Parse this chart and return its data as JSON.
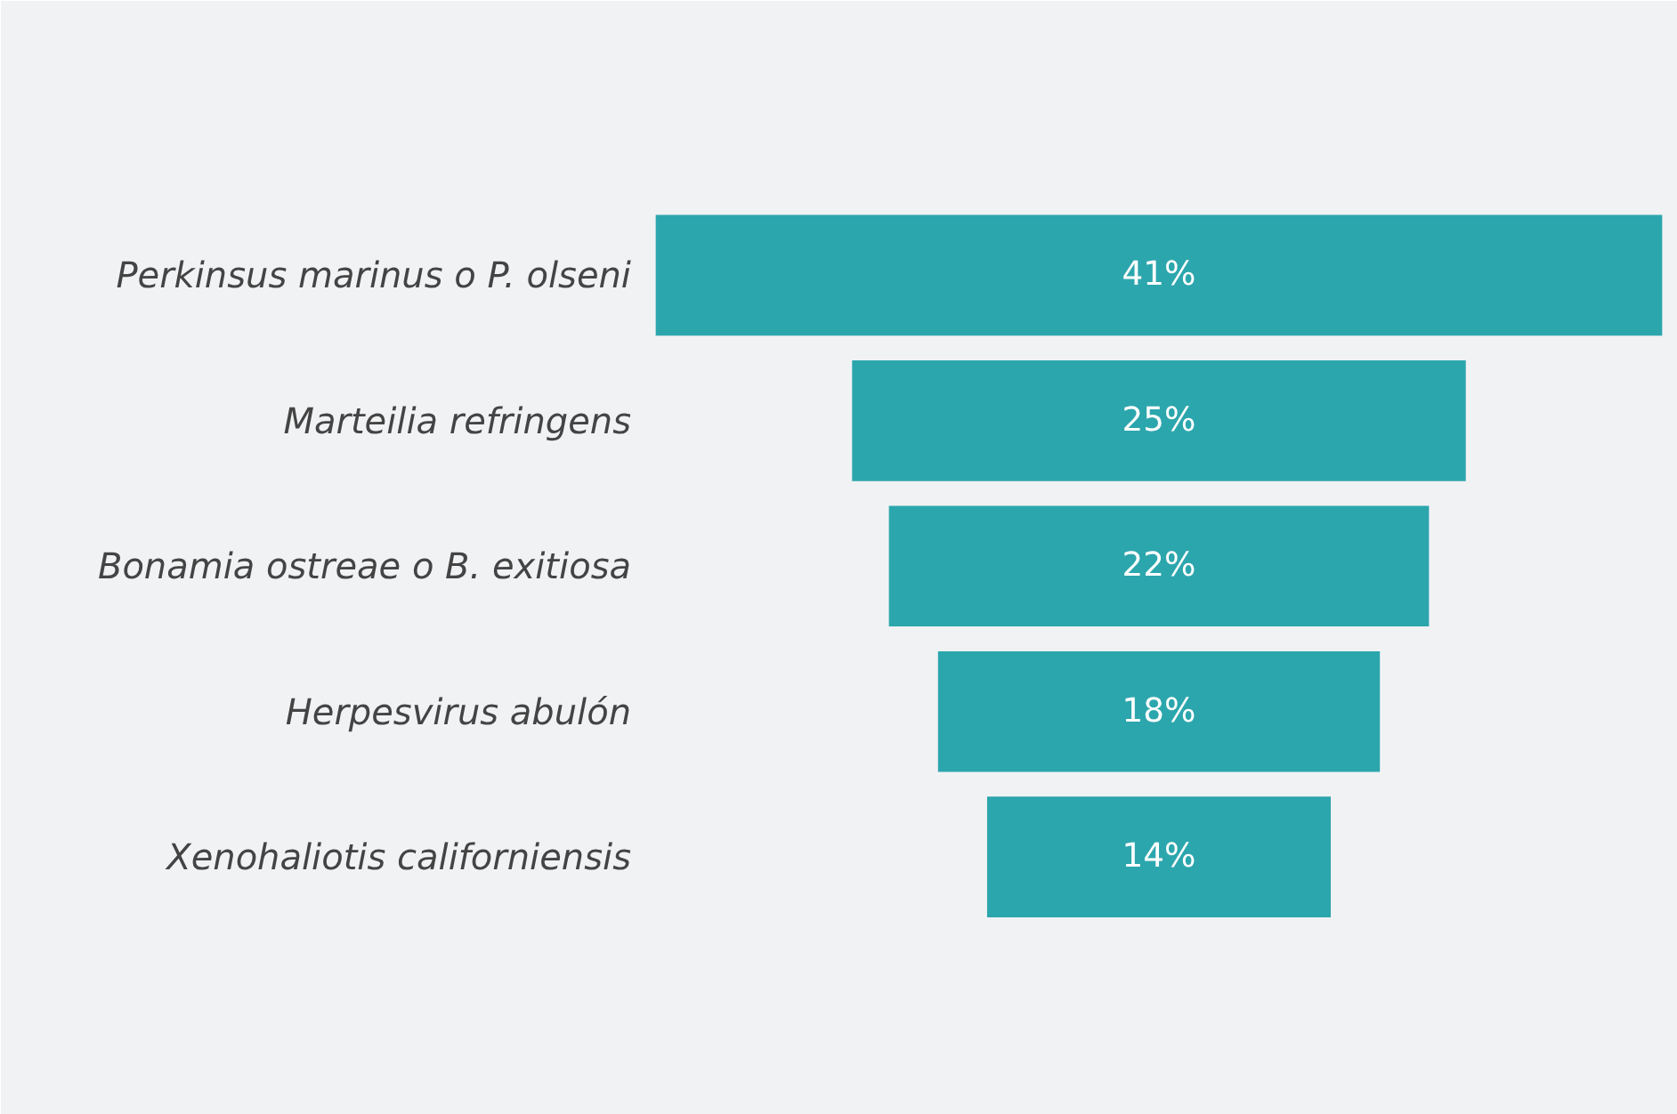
{
  "chart_data": {
    "type": "other",
    "categories": [
      "Perkinsus marinus o P. olseni",
      "Marteilia refringens",
      "Bonamia ostreae o B. exitiosa",
      "Herpesvirus abulón",
      "Xenohaliotis californiensis"
    ],
    "values": [
      41,
      25,
      22,
      18,
      14
    ],
    "value_labels": [
      "41%",
      "25%",
      "22%",
      "18%",
      "14%"
    ],
    "color": "#2ca6ad"
  }
}
